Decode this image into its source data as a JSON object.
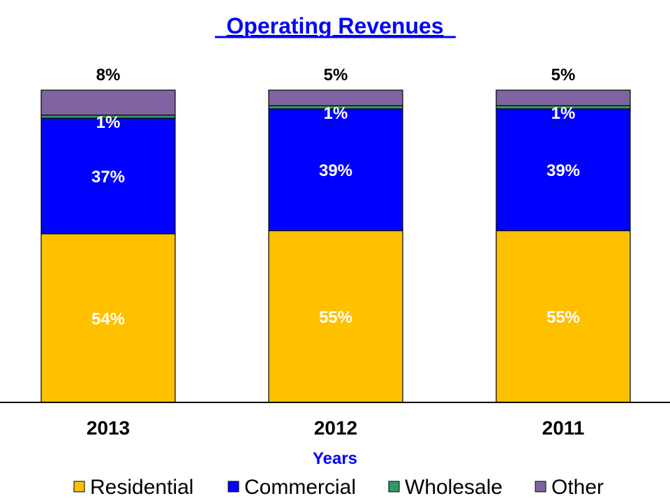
{
  "chart_data": {
    "type": "bar",
    "stacked": true,
    "percent_stacked": true,
    "title": "Operating Revenues",
    "xlabel": "Years",
    "ylabel": "",
    "ylim": [
      0,
      100
    ],
    "grid": false,
    "legend_position": "bottom",
    "categories": [
      "2013",
      "2012",
      "2011"
    ],
    "series": [
      {
        "name": "Residential",
        "color": "#FFC000",
        "values": [
          54,
          55,
          55
        ],
        "labels": [
          "54%",
          "55%",
          "55%"
        ]
      },
      {
        "name": "Commercial",
        "color": "#0000FF",
        "values": [
          37,
          39,
          39
        ],
        "labels": [
          "37%",
          "39%",
          "39%"
        ]
      },
      {
        "name": "Wholesale",
        "color": "#339966",
        "values": [
          1,
          1,
          1
        ],
        "labels": [
          "1%",
          "1%",
          "1%"
        ]
      },
      {
        "name": "Other",
        "color": "#8064A2",
        "values": [
          8,
          5,
          5
        ],
        "labels": [
          "8%",
          "5%",
          "5%"
        ]
      }
    ]
  }
}
